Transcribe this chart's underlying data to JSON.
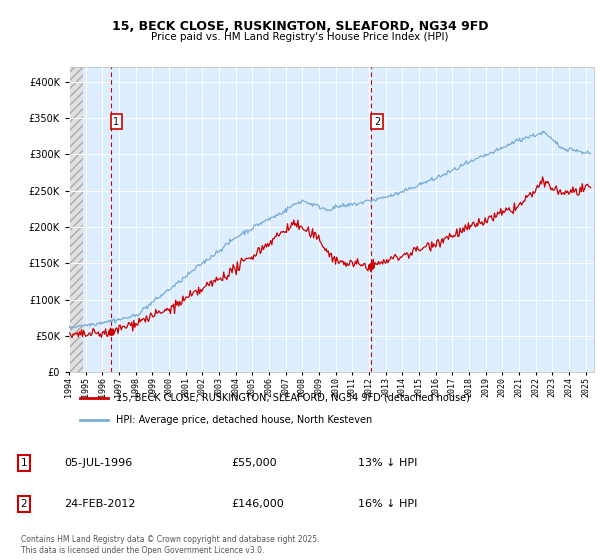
{
  "title_line1": "15, BECK CLOSE, RUSKINGTON, SLEAFORD, NG34 9FD",
  "title_line2": "Price paid vs. HM Land Registry's House Price Index (HPI)",
  "legend_entry1": "15, BECK CLOSE, RUSKINGTON, SLEAFORD, NG34 9FD (detached house)",
  "legend_entry2": "HPI: Average price, detached house, North Kesteven",
  "annotation1_date": "05-JUL-1996",
  "annotation1_price": "£55,000",
  "annotation1_hpi": "13% ↓ HPI",
  "annotation2_date": "24-FEB-2012",
  "annotation2_price": "£146,000",
  "annotation2_hpi": "16% ↓ HPI",
  "copyright_text": "Contains HM Land Registry data © Crown copyright and database right 2025.\nThis data is licensed under the Open Government Licence v3.0.",
  "price_color": "#cc0000",
  "hpi_color": "#7aadd4",
  "background_color": "#ddeeff",
  "ylim": [
    0,
    420000
  ],
  "yticks": [
    0,
    50000,
    100000,
    150000,
    200000,
    250000,
    300000,
    350000,
    400000
  ],
  "sale1_year": 1996.51,
  "sale1_price": 55000,
  "sale2_year": 2012.14,
  "sale2_price": 146000,
  "xmin": 1994,
  "xmax": 2025.5,
  "hatch_end": 1994.85
}
